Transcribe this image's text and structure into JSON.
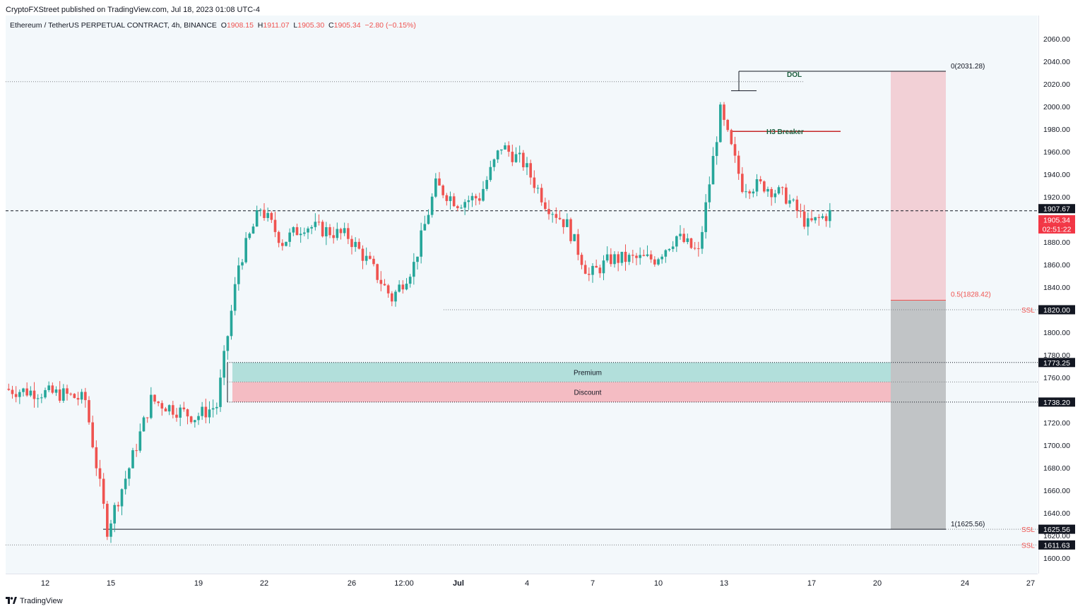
{
  "header": {
    "caption": "CryptoFXStreet published on TradingView.com, Jul 18, 2023 01:08 UTC-4"
  },
  "legend": {
    "symbol": "Ethereum / TetherUS PERPETUAL CONTRACT, 4h, BINANCE",
    "o_label": "O",
    "o_value": "1908.15",
    "h_label": "H",
    "h_value": "1911.07",
    "l_label": "L",
    "l_value": "1905.30",
    "c_label": "C",
    "c_value": "1905.34",
    "change": "−2.80 (−0.15%)"
  },
  "footer": {
    "brand": "TradingView",
    "logo": "tradingview-logo-icon"
  },
  "colors": {
    "up": "#26a69a",
    "down": "#ef5350",
    "premium": "#b2dfdb",
    "discount": "#f4bcc3",
    "risk_zone": "#f2d0d6",
    "reward_zone": "#c1c4c6",
    "axis_label_dark": "#131722",
    "last_price": "#f23645",
    "dol_text": "#1b5e3e"
  },
  "chart_data": {
    "type": "candlestick",
    "title": "Ethereum / TetherUS PERPETUAL CONTRACT, 4h, BINANCE",
    "interval": "4h",
    "ylim": [
      1590,
      2090
    ],
    "y_ticks": [
      1600,
      1620,
      1640,
      1660,
      1680,
      1700,
      1720,
      1740,
      1760,
      1780,
      1800,
      1820,
      1840,
      1860,
      1880,
      1900,
      1920,
      1940,
      1960,
      1980,
      2000,
      2020,
      2040,
      2060
    ],
    "x_ticks": [
      "12",
      "15",
      "19",
      "22",
      "26",
      "12:00",
      "Jul",
      "4",
      "7",
      "10",
      "13",
      "17",
      "20",
      "24",
      "27"
    ],
    "grid": false,
    "ohlc_last": {
      "open": 1908.15,
      "high": 1911.07,
      "low": 1905.3,
      "close": 1905.34,
      "change": "−2.80 (−0.15%)"
    },
    "price_waypoints": [
      {
        "x": "Jun 10",
        "price": 1750
      },
      {
        "x": "Jun 13",
        "price": 1745
      },
      {
        "x": "Jun 14",
        "price": 1740
      },
      {
        "x": "Jun 15",
        "price": 1625.56
      },
      {
        "x": "Jun 16",
        "price": 1680
      },
      {
        "x": "Jun 17",
        "price": 1740
      },
      {
        "x": "Jun 19",
        "price": 1725
      },
      {
        "x": "Jun 20",
        "price": 1735
      },
      {
        "x": "Jun 21",
        "price": 1860
      },
      {
        "x": "Jun 22",
        "price": 1910
      },
      {
        "x": "Jun 23",
        "price": 1880
      },
      {
        "x": "Jun 24",
        "price": 1895
      },
      {
        "x": "Jun 26",
        "price": 1885
      },
      {
        "x": "Jun 27",
        "price": 1860
      },
      {
        "x": "Jun 28",
        "price": 1830
      },
      {
        "x": "Jun 29",
        "price": 1860
      },
      {
        "x": "Jun 30",
        "price": 1930
      },
      {
        "x": "Jul 1",
        "price": 1915
      },
      {
        "x": "Jul 2",
        "price": 1920
      },
      {
        "x": "Jul 3",
        "price": 1965
      },
      {
        "x": "Jul 4",
        "price": 1950
      },
      {
        "x": "Jul 5",
        "price": 1915
      },
      {
        "x": "Jul 6",
        "price": 1895
      },
      {
        "x": "Jul 7",
        "price": 1850
      },
      {
        "x": "Jul 8",
        "price": 1865
      },
      {
        "x": "Jul 10",
        "price": 1865
      },
      {
        "x": "Jul 11",
        "price": 1885
      },
      {
        "x": "Jul 12",
        "price": 1870
      },
      {
        "x": "Jul 13",
        "price": 1995
      },
      {
        "x": "Jul 14",
        "price": 1930
      },
      {
        "x": "Jul 15",
        "price": 1930
      },
      {
        "x": "Jul 16",
        "price": 1920
      },
      {
        "x": "Jul 17",
        "price": 1895
      },
      {
        "x": "Jul 18",
        "price": 1905.34
      }
    ],
    "price_labels": [
      {
        "label": "1907.67",
        "price": 1907.67
      },
      {
        "label": "1905.34",
        "price": 1905.34
      },
      {
        "label": "02:51:22",
        "price": 1905.34
      },
      {
        "label": "1820.00",
        "price": 1820.0
      },
      {
        "label": "1773.25",
        "price": 1773.25
      },
      {
        "label": "1738.20",
        "price": 1738.2
      },
      {
        "label": "1625.56",
        "price": 1625.56
      },
      {
        "label": "1611.63",
        "price": 1611.63
      }
    ],
    "annotations": [
      {
        "text": "DOL",
        "price": 2031.28
      },
      {
        "text": "H3 Breaker",
        "price": 1978
      },
      {
        "text": "0(2031.28)",
        "price": 2031.28
      },
      {
        "text": "0.5(1828.42)",
        "price": 1828.42
      },
      {
        "text": "1(1625.56)",
        "price": 1625.56
      },
      {
        "text": "SSL",
        "price": 1820.0
      },
      {
        "text": "SSL",
        "price": 1625.56
      },
      {
        "text": "SSL",
        "price": 1611.63
      },
      {
        "text": "Premium",
        "range": [
          1756,
          1773.25
        ]
      },
      {
        "text": "Discount",
        "range": [
          1738.2,
          1756
        ]
      }
    ]
  }
}
